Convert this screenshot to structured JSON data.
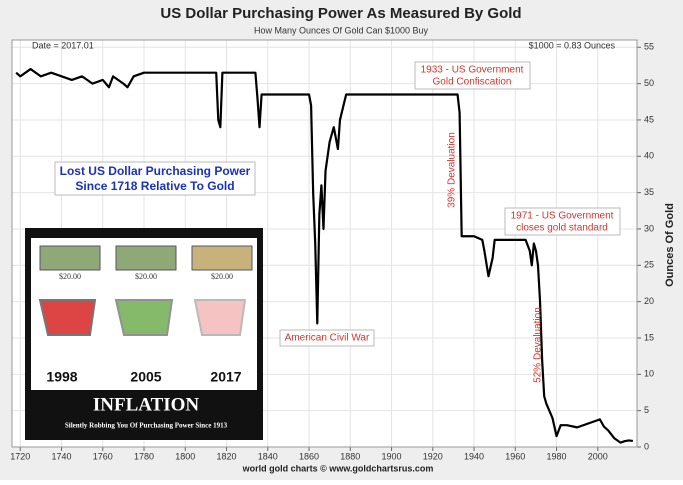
{
  "chart_data": {
    "type": "line",
    "title": "US Dollar Purchasing Power As Measured By Gold",
    "subtitle": "How Many Ounces Of Gold Can $1000 Buy",
    "y_label": "Ounces Of Gold",
    "footer": "world gold charts © www.goldchartsrus.com",
    "annotations": [
      "Date = 2017.01",
      "$1000 = 0.83 Ounces",
      "1933 - US Government",
      "Gold Confiscation",
      "39% Devaluation",
      "1971 - US Government",
      "closes gold standard",
      "52% Devaluation",
      "American Civil War",
      "Lost US Dollar Purchasing Power",
      "Since 1718 Relative To Gold"
    ],
    "inset": {
      "prices": [
        "$20.00",
        "$20.00",
        "$20.00"
      ],
      "years": [
        "1998",
        "2005",
        "2017"
      ],
      "title": "INFLATION",
      "subtitle": "Silently Robbing You Of Purchasing Power Since 1913"
    },
    "x": [
      1718,
      1720,
      1725,
      1730,
      1735,
      1740,
      1745,
      1750,
      1755,
      1760,
      1763,
      1765,
      1770,
      1772,
      1775,
      1780,
      1790,
      1800,
      1815,
      1816,
      1817,
      1818,
      1830,
      1834,
      1835,
      1836,
      1837,
      1860,
      1861,
      1862,
      1863,
      1864,
      1865,
      1866,
      1867,
      1868,
      1870,
      1872,
      1874,
      1875,
      1878,
      1932,
      1933,
      1934,
      1940,
      1944,
      1945,
      1947,
      1949,
      1950,
      1955,
      1960,
      1965,
      1967,
      1968,
      1969,
      1970,
      1971,
      1972,
      1973,
      1974,
      1975,
      1978,
      1980,
      1982,
      1985,
      1990,
      1995,
      2000,
      2001,
      2003,
      2005,
      2008,
      2011,
      2013,
      2015,
      2017
    ],
    "series": [
      {
        "name": "Ounces of gold per $1000",
        "color": "#000000",
        "values": [
          51.5,
          51,
          52,
          51,
          51.5,
          51,
          50.5,
          51,
          50,
          50.5,
          49.5,
          51,
          50,
          49.5,
          51,
          51.5,
          51.5,
          51.5,
          51.5,
          45,
          44,
          51.5,
          51.5,
          51.5,
          48,
          44,
          48.5,
          48.5,
          47,
          35,
          28,
          17,
          32,
          36,
          30,
          38,
          42,
          44,
          41,
          45,
          48.5,
          48.5,
          46,
          29,
          29,
          28.5,
          27,
          23.5,
          26,
          28.5,
          28.5,
          28.5,
          28.5,
          27,
          25,
          28,
          27,
          25,
          20,
          12,
          7,
          6,
          4,
          1.5,
          3,
          3,
          2.7,
          3.2,
          3.7,
          3.8,
          2.8,
          2.3,
          1.2,
          0.6,
          0.8,
          0.9,
          0.83
        ]
      }
    ],
    "xlim": [
      1716,
      2019
    ],
    "ylim": [
      0,
      56
    ],
    "xticks": [
      1720,
      1740,
      1760,
      1780,
      1800,
      1820,
      1840,
      1860,
      1880,
      1900,
      1920,
      1940,
      1960,
      1980,
      2000
    ],
    "yticks": [
      0,
      5,
      10,
      15,
      20,
      25,
      30,
      35,
      40,
      45,
      50,
      55
    ],
    "grid": true
  }
}
